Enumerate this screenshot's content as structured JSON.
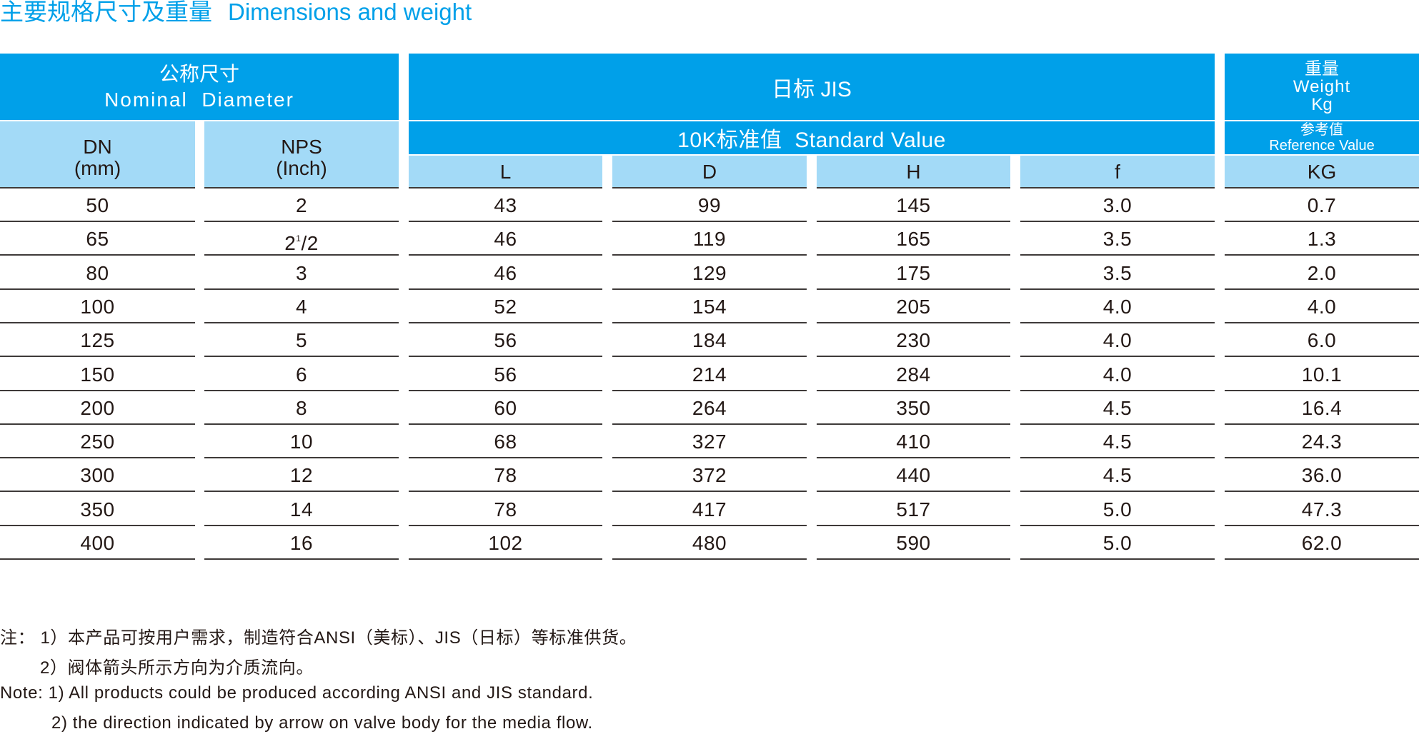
{
  "title": {
    "cn": "主要规格尺寸及重量",
    "en": "Dimensions and weight"
  },
  "header": {
    "nominal_cn": "公称尺寸",
    "nominal_en": "Nominal  Diameter",
    "dn": "DN",
    "dn_unit": "(mm)",
    "nps": "NPS",
    "nps_unit": "(Inch)",
    "jis": "日标 JIS",
    "standard": "10K标准值  Standard Value",
    "weight_cn": "重量",
    "weight_en": "Weight",
    "weight_unit": "Kg",
    "ref_cn": "参考值",
    "ref_en": "Reference Value",
    "col_L": "L",
    "col_D": "D",
    "col_H": "H",
    "col_f": "f",
    "col_KG": "KG"
  },
  "columns": [
    "dn",
    "nps",
    "L",
    "D",
    "H",
    "f",
    "kg"
  ],
  "rows": [
    {
      "dn": "50",
      "nps": "2",
      "L": "43",
      "D": "99",
      "H": "145",
      "f": "3.0",
      "kg": "0.7"
    },
    {
      "dn": "65",
      "nps": "2",
      "nps_sup": "1",
      "nps_tail": "/2",
      "L": "46",
      "D": "119",
      "H": "165",
      "f": "3.5",
      "kg": "1.3"
    },
    {
      "dn": "80",
      "nps": "3",
      "L": "46",
      "D": "129",
      "H": "175",
      "f": "3.5",
      "kg": "2.0"
    },
    {
      "dn": "100",
      "nps": "4",
      "L": "52",
      "D": "154",
      "H": "205",
      "f": "4.0",
      "kg": "4.0"
    },
    {
      "dn": "125",
      "nps": "5",
      "L": "56",
      "D": "184",
      "H": "230",
      "f": "4.0",
      "kg": "6.0"
    },
    {
      "dn": "150",
      "nps": "6",
      "L": "56",
      "D": "214",
      "H": "284",
      "f": "4.0",
      "kg": "10.1"
    },
    {
      "dn": "200",
      "nps": "8",
      "L": "60",
      "D": "264",
      "H": "350",
      "f": "4.5",
      "kg": "16.4"
    },
    {
      "dn": "250",
      "nps": "10",
      "L": "68",
      "D": "327",
      "H": "410",
      "f": "4.5",
      "kg": "24.3"
    },
    {
      "dn": "300",
      "nps": "12",
      "L": "78",
      "D": "372",
      "H": "440",
      "f": "4.5",
      "kg": "36.0"
    },
    {
      "dn": "350",
      "nps": "14",
      "L": "78",
      "D": "417",
      "H": "517",
      "f": "5.0",
      "kg": "47.3"
    },
    {
      "dn": "400",
      "nps": "16",
      "L": "102",
      "D": "480",
      "H": "590",
      "f": "5.0",
      "kg": "62.0"
    }
  ],
  "notes": [
    "注： 1）本产品可按用户需求，制造符合ANSI（美标）、JIS（日标）等标准供货。",
    "2）阀体箭头所示方向为介质流向。",
    "Note: 1) All products could be produced according ANSI and JIS standard.",
    "2) the direction indicated by arrow on valve body for the media flow."
  ],
  "colors": {
    "accent": "#00a0e9",
    "light": "#a3daf7",
    "text": "#231815",
    "rule": "#3e3a39"
  }
}
